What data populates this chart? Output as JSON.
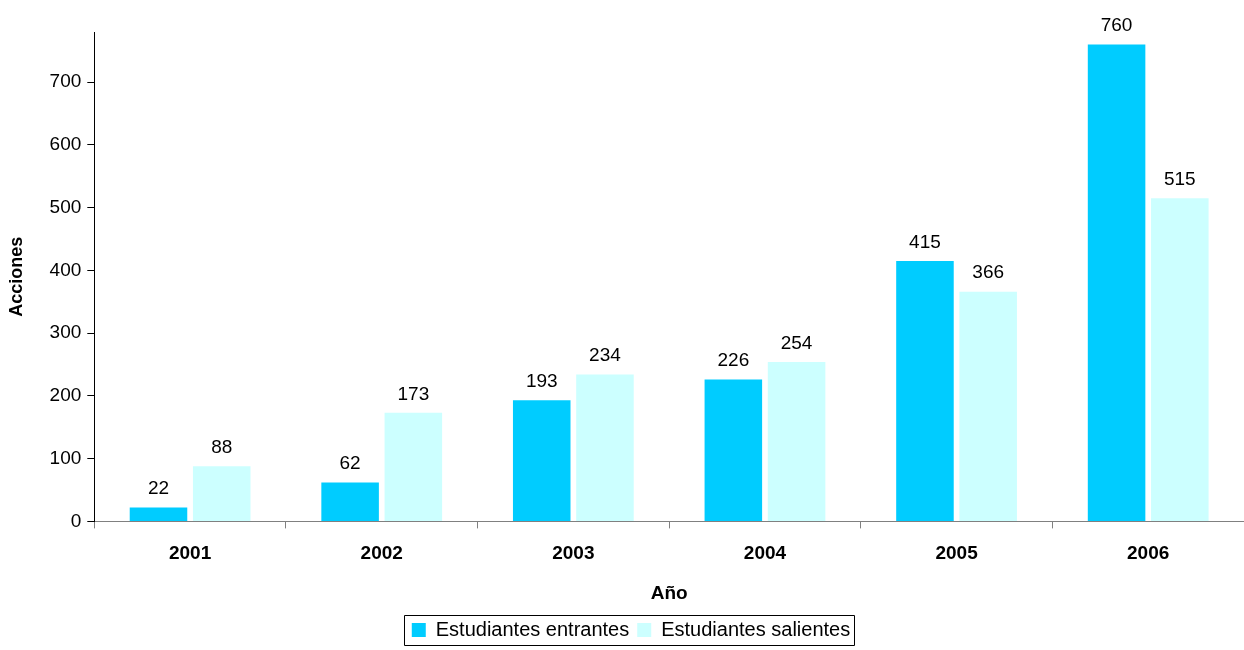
{
  "chart_data": {
    "type": "bar",
    "xlabel": "Año",
    "ylabel": "Acciones",
    "categories": [
      "2001",
      "2002",
      "2003",
      "2004",
      "2005",
      "2006"
    ],
    "series": [
      {
        "name": "Estudiantes entrantes",
        "color": "#00ccff",
        "values": [
          22,
          62,
          193,
          226,
          415,
          760
        ]
      },
      {
        "name": "Estudiantes salientes",
        "color": "#ccffff",
        "values": [
          88,
          173,
          234,
          254,
          366,
          515
        ]
      }
    ],
    "ylim": [
      0,
      780
    ],
    "yticks": [
      0,
      100,
      200,
      300,
      400,
      500,
      600,
      700
    ],
    "grid": false,
    "legend": "bottom",
    "data_labels": true
  }
}
